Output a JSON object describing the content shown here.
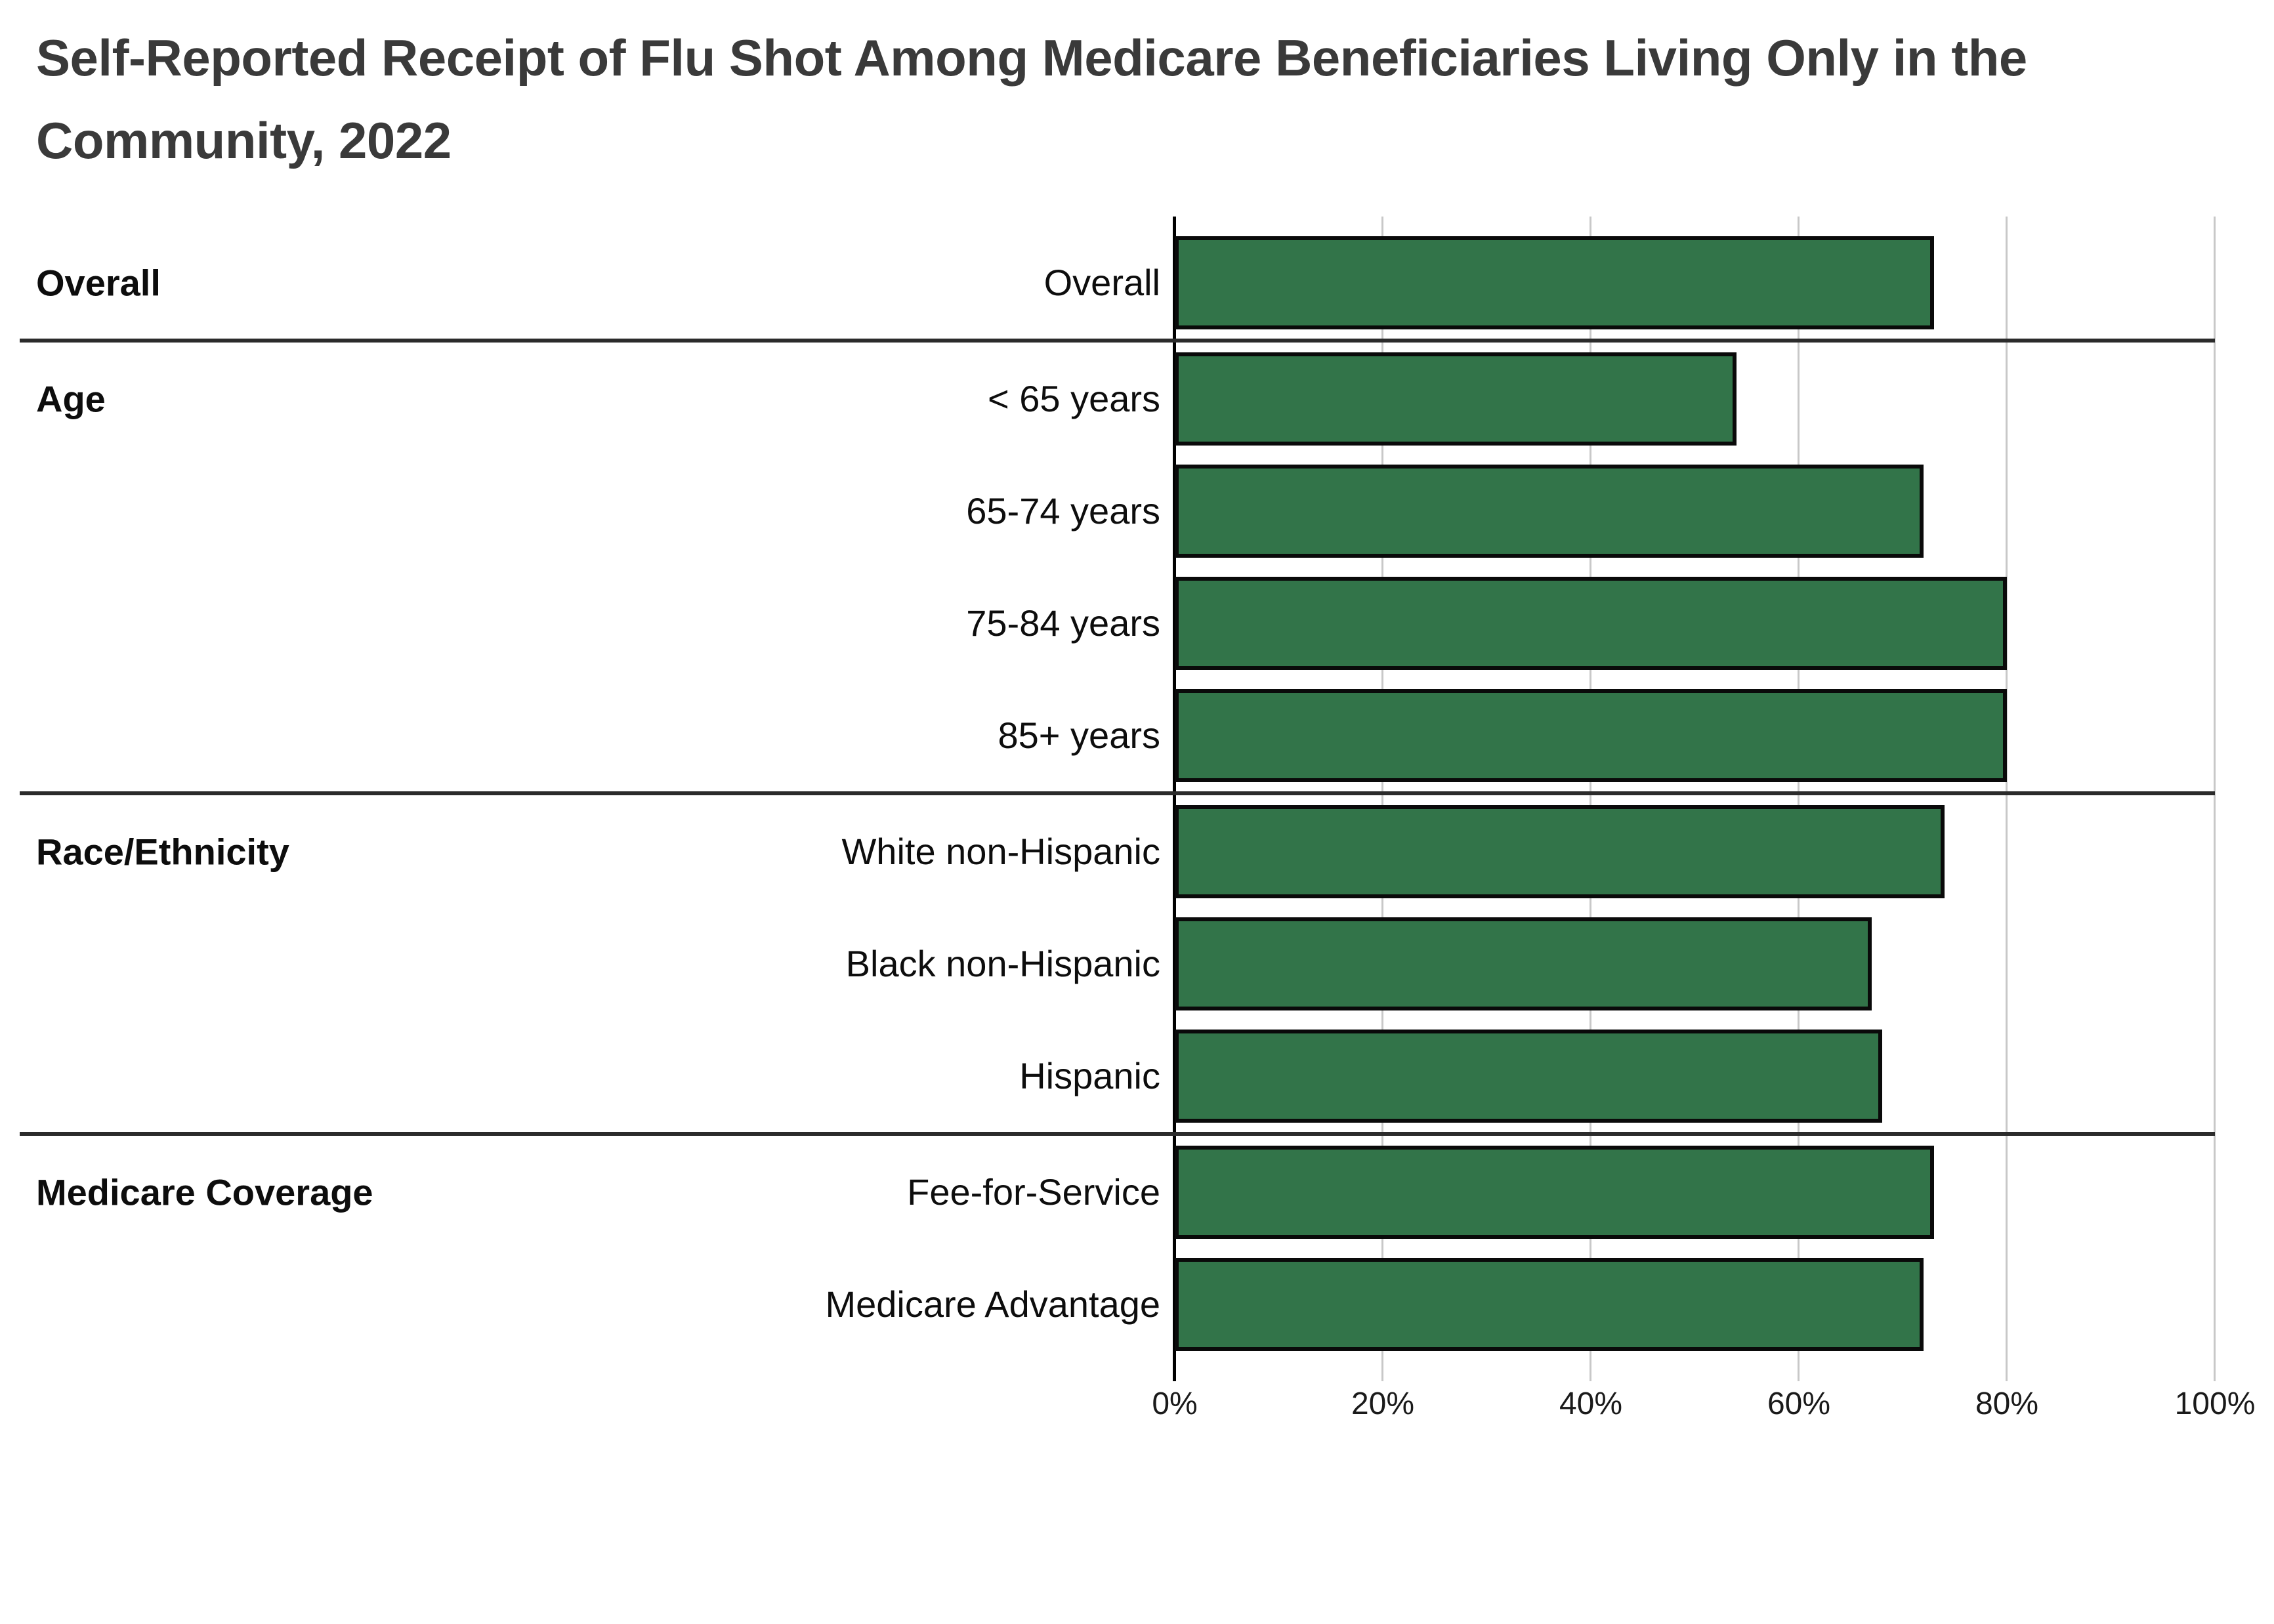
{
  "title": {
    "line1": "Self-Reported Receipt of Flu Shot Among Medicare Beneficiaries Living Only in the",
    "line2": "Community, 2022"
  },
  "colors": {
    "bar_fill": "#327449",
    "bar_border": "#0a0a0a",
    "grid": "#c8c8c8",
    "separator": "#2b2b2b",
    "axis": "#000000",
    "title_text": "#3a3a3a",
    "label_text": "#0d0d0d",
    "tick_text": "#1a1a1a"
  },
  "chart_data": {
    "type": "bar",
    "orientation": "horizontal",
    "title": "Self-Reported Receipt of Flu Shot Among Medicare Beneficiaries Living Only in the Community, 2022",
    "xlabel": "",
    "ylabel": "",
    "xlim": [
      0,
      100
    ],
    "x_tick_labels": [
      "0%",
      "20%",
      "40%",
      "60%",
      "80%",
      "100%"
    ],
    "grid": "vertical",
    "legend": "none",
    "unit": "percent",
    "groups": [
      {
        "label": "Overall",
        "rows": [
          {
            "label": "Overall",
            "value": 73
          }
        ]
      },
      {
        "label": "Age",
        "rows": [
          {
            "label": "< 65 years",
            "value": 54
          },
          {
            "label": "65-74 years",
            "value": 72
          },
          {
            "label": "75-84 years",
            "value": 80
          },
          {
            "label": "85+ years",
            "value": 80
          }
        ]
      },
      {
        "label": "Race/Ethnicity",
        "rows": [
          {
            "label": "White non-Hispanic",
            "value": 74
          },
          {
            "label": "Black non-Hispanic",
            "value": 67
          },
          {
            "label": "Hispanic",
            "value": 68
          }
        ]
      },
      {
        "label": "Medicare Coverage",
        "rows": [
          {
            "label": "Fee-for-Service",
            "value": 73
          },
          {
            "label": "Medicare Advantage",
            "value": 72
          }
        ]
      }
    ]
  }
}
